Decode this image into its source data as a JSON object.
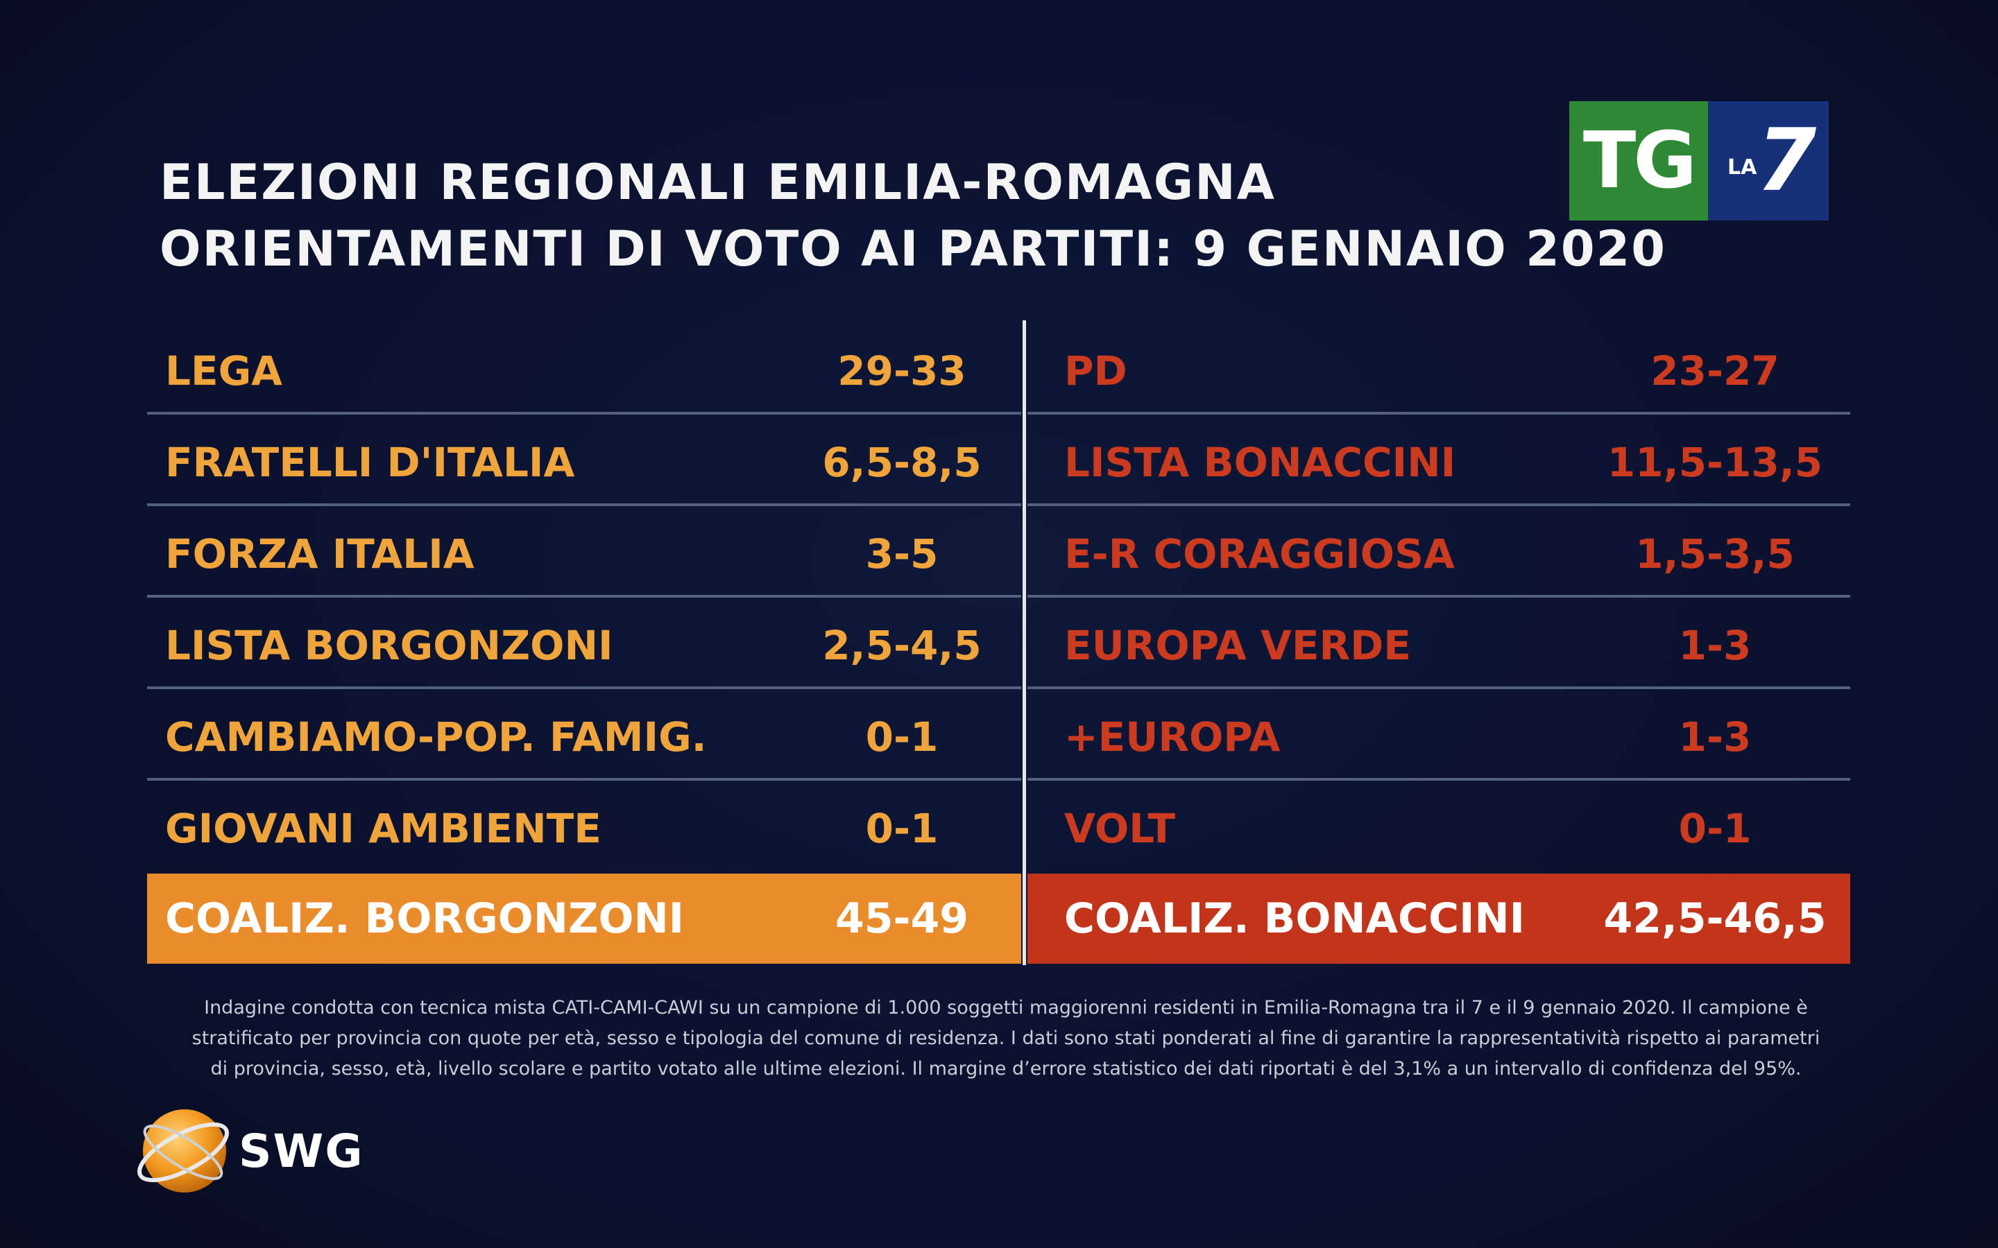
{
  "title": {
    "line1": "ELEZIONI REGIONALI EMILIA-ROMAGNA",
    "line2": "ORIENTAMENTI DI VOTO AI PARTITI: 9 GENNAIO 2020"
  },
  "broadcaster": {
    "tg": "TG",
    "la": "LA",
    "seven": "7"
  },
  "colors": {
    "left_accent": "#f0a43c",
    "left_total_bg": "#ea8b2c",
    "right_accent": "#cc3a20",
    "right_total_bg": "#c2351b",
    "background": "#0b1230"
  },
  "chart_data": {
    "type": "table",
    "unit": "percent range",
    "columns": [
      {
        "coalition": "COALIZ. BORGONZONI",
        "coalition_range": "45-49",
        "parties": [
          {
            "name": "LEGA",
            "range": "29-33"
          },
          {
            "name": "FRATELLI D'ITALIA",
            "range": "6,5-8,5"
          },
          {
            "name": "FORZA ITALIA",
            "range": "3-5"
          },
          {
            "name": "LISTA BORGONZONI",
            "range": "2,5-4,5"
          },
          {
            "name": "CAMBIAMO-POP. FAMIG.",
            "range": "0-1"
          },
          {
            "name": "GIOVANI AMBIENTE",
            "range": "0-1"
          }
        ]
      },
      {
        "coalition": "COALIZ. BONACCINI",
        "coalition_range": "42,5-46,5",
        "parties": [
          {
            "name": "PD",
            "range": "23-27"
          },
          {
            "name": "LISTA BONACCINI",
            "range": "11,5-13,5"
          },
          {
            "name": "E-R CORAGGIOSA",
            "range": "1,5-3,5"
          },
          {
            "name": "EUROPA VERDE",
            "range": "1-3"
          },
          {
            "name": "+EUROPA",
            "range": "1-3"
          },
          {
            "name": "VOLT",
            "range": "0-1"
          }
        ]
      }
    ]
  },
  "methodology_note": {
    "line1": "Indagine condotta con tecnica mista CATI-CAMI-CAWI su un campione di 1.000 soggetti maggiorenni residenti in Emilia-Romagna tra il 7 e il 9 gennaio 2020. Il campione è",
    "line2": "stratificato per provincia con quote per età, sesso e tipologia del comune di residenza. I dati sono stati ponderati al fine di garantire la rappresentatività rispetto ai parametri",
    "line3": "di provincia, sesso, età, livello scolare e partito votato alle ultime elezioni. Il margine d’errore statistico dei dati riportati è del 3,1% a un intervallo di confidenza del 95%."
  },
  "source_logo": {
    "text": "SWG",
    "icon": "globe-icon"
  }
}
